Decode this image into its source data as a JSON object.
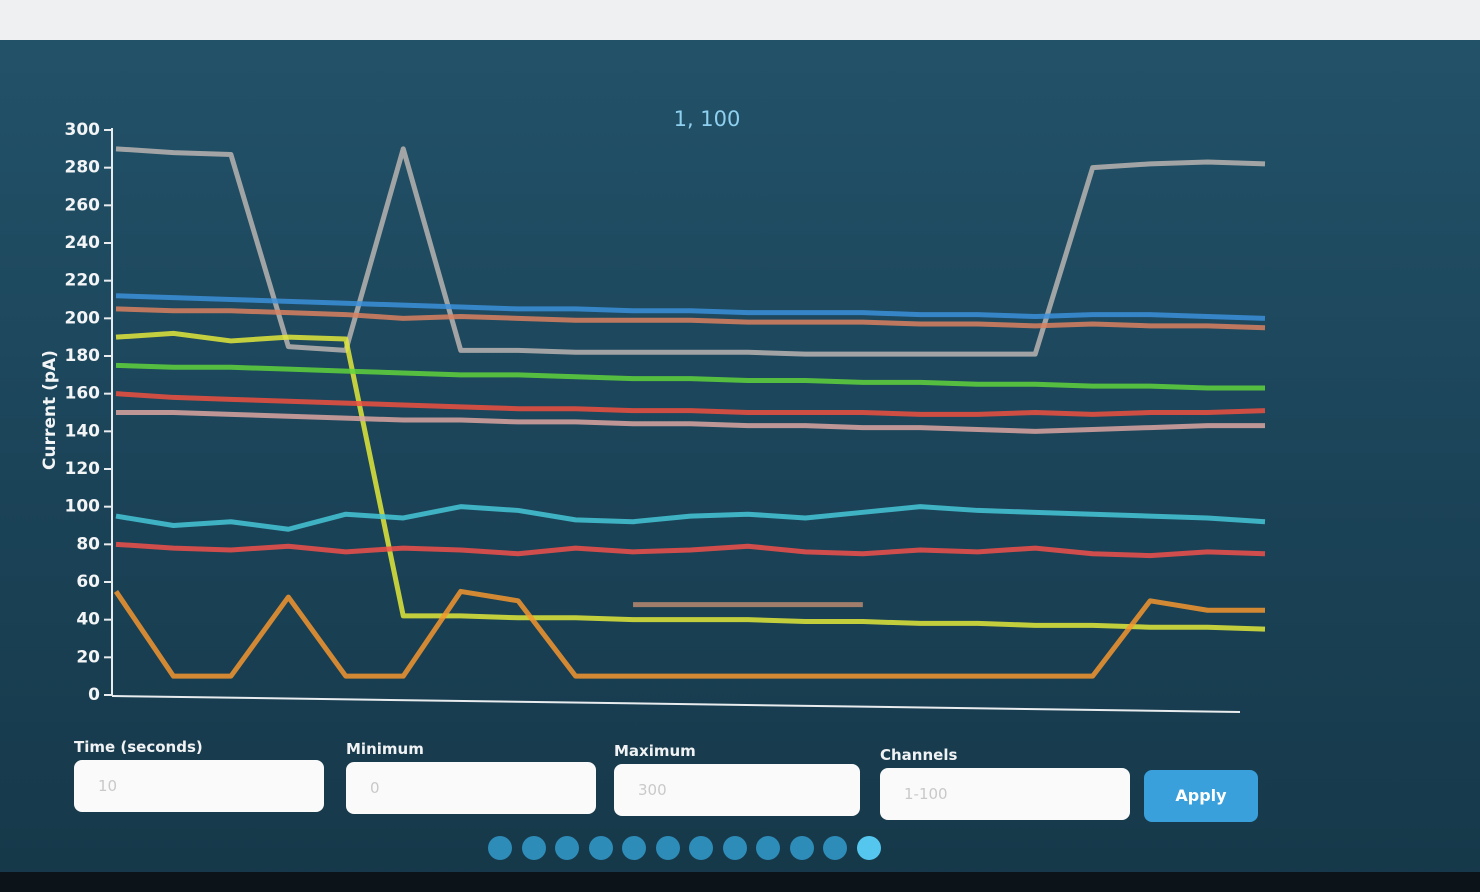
{
  "chart_data": {
    "type": "line",
    "title": "1, 100",
    "y_label": "Current (pA)",
    "x": [
      0,
      0.5,
      1,
      1.5,
      2,
      2.5,
      3,
      3.5,
      4,
      4.5,
      5,
      5.5,
      6,
      6.5,
      7,
      7.5,
      8,
      8.5,
      9,
      9.5,
      10
    ],
    "xlim": [
      0,
      10
    ],
    "ylim": [
      0,
      300
    ],
    "yticks": [
      0,
      20,
      40,
      60,
      80,
      100,
      120,
      140,
      160,
      180,
      200,
      220,
      240,
      260,
      280,
      300
    ],
    "series": [
      {
        "color": "#b8b4b0",
        "values": [
          290,
          288,
          287,
          185,
          183,
          290,
          183,
          183,
          182,
          182,
          182,
          182,
          181,
          181,
          181,
          181,
          181,
          280,
          282,
          283,
          282
        ]
      },
      {
        "color": "#3b8fd9",
        "values": [
          212,
          211,
          210,
          209,
          208,
          207,
          206,
          205,
          205,
          204,
          204,
          203,
          203,
          203,
          202,
          202,
          201,
          202,
          202,
          201,
          200
        ]
      },
      {
        "color": "#d9805f",
        "values": [
          205,
          204,
          204,
          203,
          202,
          200,
          201,
          200,
          199,
          199,
          199,
          198,
          198,
          198,
          197,
          197,
          196,
          197,
          196,
          196,
          195
        ]
      },
      {
        "color": "#e2e83a",
        "values": [
          190,
          192,
          188,
          190,
          189,
          42,
          42,
          41,
          41,
          40,
          40,
          40,
          39,
          39,
          38,
          38,
          37,
          37,
          36,
          36,
          35
        ]
      },
      {
        "color": "#5fd43c",
        "values": [
          175,
          174,
          174,
          173,
          172,
          171,
          170,
          170,
          169,
          168,
          168,
          167,
          167,
          166,
          166,
          165,
          165,
          164,
          164,
          163,
          163
        ]
      },
      {
        "color": "#ee5040",
        "values": [
          160,
          158,
          157,
          156,
          155,
          154,
          153,
          152,
          152,
          151,
          151,
          150,
          150,
          150,
          149,
          149,
          150,
          149,
          150,
          150,
          151
        ]
      },
      {
        "color": "#d9a5a0",
        "values": [
          150,
          150,
          149,
          148,
          147,
          146,
          146,
          145,
          145,
          144,
          144,
          143,
          143,
          142,
          142,
          141,
          140,
          141,
          142,
          143,
          143
        ]
      },
      {
        "color": "#45c6d6",
        "values": [
          95,
          90,
          92,
          88,
          96,
          94,
          100,
          98,
          93,
          92,
          95,
          96,
          94,
          97,
          100,
          98,
          97,
          96,
          95,
          94,
          92
        ]
      },
      {
        "color": "#f0504a",
        "values": [
          80,
          78,
          77,
          79,
          76,
          78,
          77,
          75,
          78,
          76,
          77,
          79,
          76,
          75,
          77,
          76,
          78,
          75,
          74,
          76,
          75
        ]
      },
      {
        "color": "#f5972e",
        "values": [
          55,
          10,
          10,
          52,
          10,
          10,
          55,
          50,
          10,
          10,
          10,
          10,
          10,
          10,
          10,
          10,
          10,
          10,
          50,
          45,
          45
        ]
      },
      {
        "color": "#b98a70",
        "values": [
          null,
          null,
          null,
          null,
          null,
          null,
          null,
          null,
          null,
          48,
          48,
          48,
          48,
          48,
          null,
          null,
          null,
          null,
          null,
          null,
          null
        ]
      }
    ]
  },
  "controls": {
    "fields": [
      {
        "label": "Time (seconds)",
        "placeholder": "10"
      },
      {
        "label": "Minimum",
        "placeholder": "0"
      },
      {
        "label": "Maximum",
        "placeholder": "300"
      },
      {
        "label": "Channels",
        "placeholder": "1-100"
      }
    ],
    "button": "Apply"
  }
}
